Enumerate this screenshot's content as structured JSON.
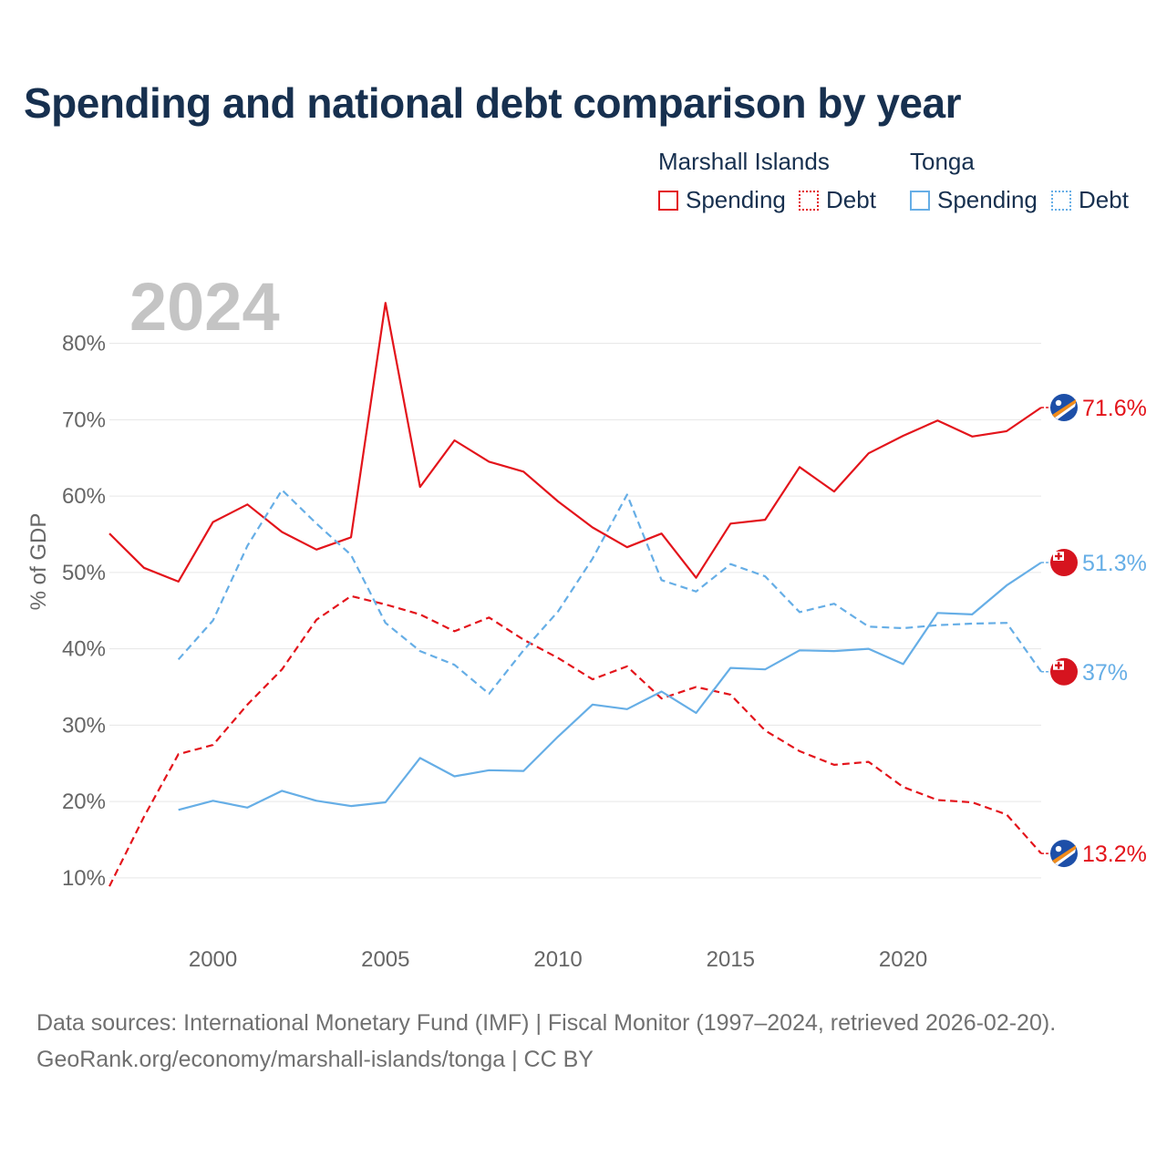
{
  "title": "Spending and national debt comparison by year",
  "legend": {
    "groups": [
      {
        "name": "Marshall Islands",
        "items": [
          "Spending",
          "Debt"
        ]
      },
      {
        "name": "Tonga",
        "items": [
          "Spending",
          "Debt"
        ]
      }
    ]
  },
  "year_label": "2024",
  "footer": {
    "line1": "Data sources: International Monetary Fund (IMF) | Fiscal Monitor (1997–2024, retrieved 2026-02-20).",
    "line2": "GeoRank.org/economy/marshall-islands/tonga | CC BY"
  },
  "colors": {
    "marshall": "#e3141b",
    "tonga": "#66aee6",
    "title": "#17304f",
    "year_watermark": "#c4c4c4",
    "axis_text": "#666666",
    "grid": "#e6e6e6"
  },
  "chart_data": {
    "type": "line",
    "ylabel": "% of GDP",
    "xlabel": "",
    "xlim": [
      1997,
      2024
    ],
    "ylim": [
      7,
      87
    ],
    "y_ticks": [
      10,
      20,
      30,
      40,
      50,
      60,
      70,
      80
    ],
    "y_tick_labels": [
      "10%",
      "20%",
      "30%",
      "40%",
      "50%",
      "60%",
      "70%",
      "80%"
    ],
    "x_ticks": [
      2000,
      2005,
      2010,
      2015,
      2020
    ],
    "x_tick_labels": [
      "2000",
      "2005",
      "2010",
      "2015",
      "2020"
    ],
    "series": [
      {
        "name": "Spending",
        "country": "Marshall Islands",
        "color": "#e3141b",
        "style": "solid",
        "x": [
          1997,
          1998,
          1999,
          2000,
          2001,
          2002,
          2003,
          2004,
          2005,
          2006,
          2007,
          2008,
          2009,
          2010,
          2011,
          2012,
          2013,
          2014,
          2015,
          2016,
          2017,
          2018,
          2019,
          2020,
          2021,
          2022,
          2023,
          2024
        ],
        "values": [
          55.1,
          50.6,
          48.8,
          56.6,
          58.9,
          55.3,
          53.0,
          54.6,
          85.3,
          61.2,
          67.3,
          64.5,
          63.2,
          59.3,
          55.9,
          53.3,
          55.1,
          49.3,
          56.4,
          56.9,
          63.8,
          60.6,
          65.6,
          67.9,
          69.9,
          67.8,
          68.5,
          71.6
        ],
        "end_label": "71.6%"
      },
      {
        "name": "Debt",
        "country": "Marshall Islands",
        "color": "#e3141b",
        "style": "dashed",
        "x": [
          1997,
          1998,
          1999,
          2000,
          2001,
          2002,
          2003,
          2004,
          2005,
          2006,
          2007,
          2008,
          2009,
          2010,
          2011,
          2012,
          2013,
          2014,
          2015,
          2016,
          2017,
          2018,
          2019,
          2020,
          2021,
          2022,
          2023,
          2024
        ],
        "values": [
          8.9,
          18.0,
          26.2,
          27.4,
          32.7,
          37.3,
          43.8,
          46.9,
          45.8,
          44.5,
          42.3,
          44.1,
          41.2,
          38.8,
          36.0,
          37.7,
          33.5,
          35.0,
          34.0,
          29.3,
          26.6,
          24.8,
          25.2,
          21.9,
          20.2,
          19.9,
          18.3,
          13.2
        ],
        "end_label": "13.2%"
      },
      {
        "name": "Spending",
        "country": "Tonga",
        "color": "#66aee6",
        "style": "solid",
        "x": [
          1999,
          2000,
          2001,
          2002,
          2003,
          2004,
          2005,
          2006,
          2007,
          2008,
          2009,
          2010,
          2011,
          2012,
          2013,
          2014,
          2015,
          2016,
          2017,
          2018,
          2019,
          2020,
          2021,
          2022,
          2023,
          2024
        ],
        "values": [
          18.9,
          20.1,
          19.2,
          21.4,
          20.1,
          19.4,
          19.9,
          25.7,
          23.3,
          24.1,
          24.0,
          28.5,
          32.7,
          32.1,
          34.4,
          31.6,
          37.5,
          37.3,
          39.8,
          39.7,
          40.0,
          38.0,
          44.7,
          44.5,
          48.3,
          51.3
        ],
        "end_label": "51.3%"
      },
      {
        "name": "Debt",
        "country": "Tonga",
        "color": "#66aee6",
        "style": "dashed",
        "x": [
          1999,
          2000,
          2001,
          2002,
          2003,
          2004,
          2005,
          2006,
          2007,
          2008,
          2009,
          2010,
          2011,
          2012,
          2013,
          2014,
          2015,
          2016,
          2017,
          2018,
          2019,
          2020,
          2021,
          2022,
          2023,
          2024
        ],
        "values": [
          38.6,
          43.7,
          53.5,
          60.8,
          56.4,
          52.3,
          43.4,
          39.7,
          37.9,
          34.1,
          39.8,
          44.9,
          51.8,
          60.2,
          49.0,
          47.5,
          51.1,
          49.5,
          44.8,
          45.9,
          42.9,
          42.7,
          43.1,
          43.3,
          43.4,
          37.0
        ],
        "end_label": "37%"
      }
    ]
  }
}
